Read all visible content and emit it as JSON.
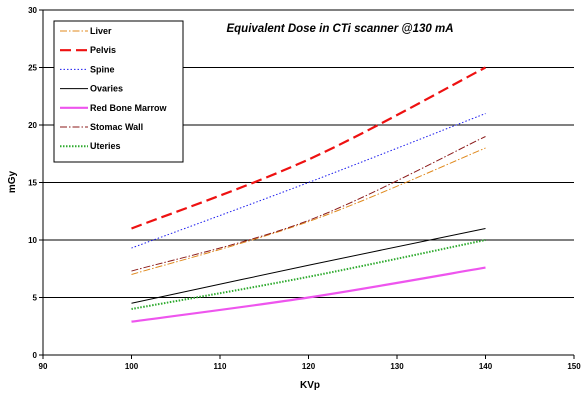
{
  "chart_data": {
    "type": "line",
    "title": "Equivalent Dose in CTi scanner @130 mA",
    "xlabel": "KVp",
    "ylabel": "mGy",
    "xlim": [
      90,
      150
    ],
    "ylim": [
      0,
      30
    ],
    "x_ticks": [
      90,
      100,
      110,
      120,
      130,
      140,
      150
    ],
    "y_ticks": [
      0,
      5,
      10,
      15,
      20,
      25,
      30
    ],
    "grid": "horizontal",
    "legend_position": "top-left",
    "x": [
      100,
      120,
      140
    ],
    "series": [
      {
        "name": "Liver",
        "values": [
          7.0,
          11.6,
          18.0
        ],
        "color": "#e08a1e",
        "dash": "7,2,1.5,2",
        "width": 1
      },
      {
        "name": "Pelvis",
        "values": [
          11.0,
          17.0,
          25.0
        ],
        "color": "#ee1111",
        "dash": "11,5",
        "width": 2.2
      },
      {
        "name": "Spine",
        "values": [
          9.3,
          15.0,
          21.0
        ],
        "color": "#1a1aee",
        "dash": "1.5,2",
        "width": 1
      },
      {
        "name": "Ovaries",
        "values": [
          4.5,
          7.8,
          11.0
        ],
        "color": "#000000",
        "dash": "",
        "width": 1
      },
      {
        "name": "Red Bone Marrow",
        "values": [
          2.9,
          5.0,
          7.6
        ],
        "color": "#ee55ee",
        "dash": "",
        "width": 2.2
      },
      {
        "name": "Stomac Wall",
        "values": [
          7.3,
          11.7,
          19.0
        ],
        "color": "#8b1a1a",
        "dash": "7,2,1.5,2",
        "width": 1
      },
      {
        "name": "Uteries",
        "values": [
          4.0,
          6.8,
          10.0
        ],
        "color": "#2eaa2e",
        "dash": "1.5,1.5",
        "width": 2
      }
    ]
  }
}
